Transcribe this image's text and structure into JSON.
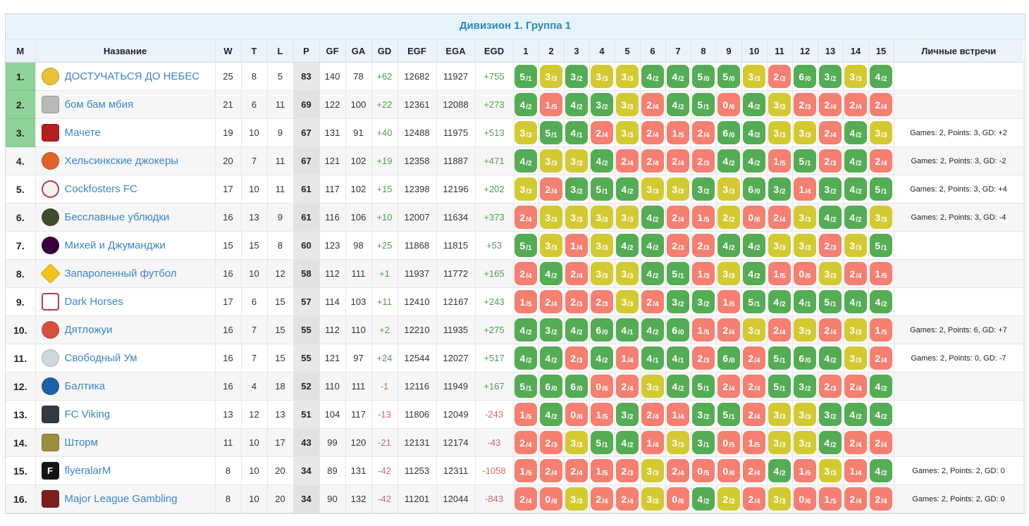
{
  "title": "Дивизион 1. Группа 1",
  "columns": {
    "place": "М",
    "name": "Название",
    "stats": [
      "W",
      "T",
      "L",
      "P",
      "GF",
      "GA",
      "GD",
      "EGF",
      "EGA",
      "EGD"
    ],
    "grid": [
      "1",
      "2",
      "3",
      "4",
      "5",
      "6",
      "7",
      "8",
      "9",
      "10",
      "11",
      "12",
      "13",
      "14",
      "15"
    ],
    "meetings": "Личные встречи"
  },
  "colors": {
    "accent": "#2789c6",
    "link": "#3c86c8",
    "win": "#54ac54",
    "draw": "#d3ca31",
    "loss": "#f57f71",
    "top_place": "#8ed29a",
    "positive": "#4e9e4e",
    "negative": "#cc6b66"
  },
  "legend": {
    "win_key": "w",
    "draw_key": "d",
    "loss_key": "l"
  },
  "teams": [
    {
      "place": "1.",
      "top3": true,
      "icon": {
        "bg": "#e6c23a",
        "shape": "circle",
        "label": ""
      },
      "name": "ДОСТУЧАТЬСЯ ДО НЕБЕС",
      "w": "25",
      "t": "8",
      "l": "5",
      "p": "83",
      "gf": "140",
      "ga": "78",
      "gd": "+62",
      "egf": "12682",
      "ega": "11927",
      "egd": "+755",
      "meetings": "",
      "results": [
        "5/1|w",
        "3/3|d",
        "3/2|w",
        "3/3|d",
        "3/3|d",
        "4/2|w",
        "4/2|w",
        "5/0|w",
        "5/0|w",
        "3/3|d",
        "2/3|l",
        "6/0|w",
        "3/2|w",
        "3/3|d",
        "4/2|w"
      ]
    },
    {
      "place": "2.",
      "top3": true,
      "icon": {
        "bg": "#b9b9b9",
        "shape": "square",
        "label": ""
      },
      "name": "бом бам мбия",
      "w": "21",
      "t": "6",
      "l": "11",
      "p": "69",
      "gf": "122",
      "ga": "100",
      "gd": "+22",
      "egf": "12361",
      "ega": "12088",
      "egd": "+273",
      "meetings": "",
      "results": [
        "4/2|w",
        "1/5|l",
        "4/2|w",
        "3/2|w",
        "3/3|d",
        "2/4|l",
        "4/2|w",
        "5/1|w",
        "0/6|l",
        "4/2|w",
        "3/3|d",
        "2/3|l",
        "2/4|l",
        "2/4|l",
        "2/4|l"
      ]
    },
    {
      "place": "3.",
      "top3": true,
      "icon": {
        "bg": "#b51f1f",
        "shape": "square",
        "label": ""
      },
      "name": "Мачете",
      "w": "19",
      "t": "10",
      "l": "9",
      "p": "67",
      "gf": "131",
      "ga": "91",
      "gd": "+40",
      "egf": "12488",
      "ega": "11975",
      "egd": "+513",
      "meetings": "Games: 2, Points: 3, GD: +2",
      "results": [
        "3/3|d",
        "5/1|w",
        "4/1|w",
        "2/4|l",
        "3/3|d",
        "2/4|l",
        "1/5|l",
        "2/4|l",
        "6/0|w",
        "4/2|w",
        "3/3|d",
        "3/3|d",
        "2/4|l",
        "4/2|w",
        "3/3|d"
      ]
    },
    {
      "place": "4.",
      "top3": false,
      "icon": {
        "bg": "#e2622b",
        "shape": "circle",
        "label": ""
      },
      "name": "Хельсинкские джокеры",
      "w": "20",
      "t": "7",
      "l": "11",
      "p": "67",
      "gf": "121",
      "ga": "102",
      "gd": "+19",
      "egf": "12358",
      "ega": "11887",
      "egd": "+471",
      "meetings": "Games: 2, Points: 3, GD: -2",
      "results": [
        "4/2|w",
        "3/3|d",
        "3/3|d",
        "4/2|w",
        "2/4|l",
        "2/4|l",
        "2/4|l",
        "2/3|l",
        "4/2|w",
        "4/2|w",
        "1/5|l",
        "5/1|w",
        "2/3|l",
        "4/2|w",
        "2/4|l"
      ]
    },
    {
      "place": "5.",
      "top3": false,
      "icon": {
        "bg": "#f3f3f3",
        "shape": "circle",
        "label": ""
      },
      "name": "Cockfosters FC",
      "w": "17",
      "t": "10",
      "l": "11",
      "p": "61",
      "gf": "117",
      "ga": "102",
      "gd": "+15",
      "egf": "12398",
      "ega": "12196",
      "egd": "+202",
      "meetings": "Games: 2, Points: 3, GD: +4",
      "results": [
        "3/3|d",
        "2/4|l",
        "3/2|w",
        "5/1|w",
        "4/2|w",
        "3/3|d",
        "3/3|d",
        "3/2|w",
        "3/3|d",
        "6/0|w",
        "3/2|w",
        "1/4|l",
        "3/2|w",
        "4/2|w",
        "5/1|w"
      ]
    },
    {
      "place": "6.",
      "top3": false,
      "icon": {
        "bg": "#3f4d2e",
        "shape": "circle",
        "label": ""
      },
      "name": "Бесславные ублюдки",
      "w": "16",
      "t": "13",
      "l": "9",
      "p": "61",
      "gf": "116",
      "ga": "106",
      "gd": "+10",
      "egf": "12007",
      "ega": "11634",
      "egd": "+373",
      "meetings": "Games: 2, Points: 3, GD: -4",
      "results": [
        "2/4|l",
        "3/3|d",
        "3/3|d",
        "3/3|d",
        "3/3|d",
        "4/2|w",
        "2/4|l",
        "1/5|l",
        "2/2|d",
        "0/6|l",
        "2/4|l",
        "3/3|d",
        "4/2|w",
        "4/2|w",
        "3/3|d"
      ]
    },
    {
      "place": "7.",
      "top3": false,
      "icon": {
        "bg": "#38003c",
        "shape": "circle",
        "label": ""
      },
      "name": "Михей и Джуманджи",
      "w": "15",
      "t": "15",
      "l": "8",
      "p": "60",
      "gf": "123",
      "ga": "98",
      "gd": "+25",
      "egf": "11868",
      "ega": "11815",
      "egd": "+53",
      "meetings": "",
      "results": [
        "5/1|w",
        "3/3|d",
        "1/4|l",
        "3/3|d",
        "4/2|w",
        "4/2|w",
        "2/3|l",
        "2/3|l",
        "4/2|w",
        "4/2|w",
        "3/3|d",
        "3/3|d",
        "2/3|l",
        "3/3|d",
        "5/1|w"
      ]
    },
    {
      "place": "8.",
      "top3": false,
      "icon": {
        "bg": "#f0c419",
        "shape": "diamond",
        "label": ""
      },
      "name": "Запароленный футбол",
      "w": "16",
      "t": "10",
      "l": "12",
      "p": "58",
      "gf": "112",
      "ga": "111",
      "gd": "+1",
      "egf": "11937",
      "ega": "11772",
      "egd": "+165",
      "meetings": "",
      "results": [
        "2/4|l",
        "4/2|w",
        "2/4|l",
        "3/3|d",
        "3/3|d",
        "4/2|w",
        "5/1|w",
        "1/3|l",
        "3/3|d",
        "4/2|w",
        "1/5|l",
        "0/6|l",
        "3/3|d",
        "2/4|l",
        "1/5|l"
      ]
    },
    {
      "place": "9.",
      "top3": false,
      "icon": {
        "bg": "#ffffff",
        "shape": "square",
        "label": ""
      },
      "name": "Dark Horses",
      "w": "17",
      "t": "6",
      "l": "15",
      "p": "57",
      "gf": "114",
      "ga": "103",
      "gd": "+11",
      "egf": "12410",
      "ega": "12167",
      "egd": "+243",
      "meetings": "",
      "results": [
        "1/5|l",
        "2/4|l",
        "2/3|l",
        "2/3|l",
        "3/3|d",
        "2/4|l",
        "3/2|w",
        "3/2|w",
        "1/5|l",
        "5/1|w",
        "4/2|w",
        "4/1|w",
        "5/1|w",
        "4/1|w",
        "4/2|w"
      ]
    },
    {
      "place": "10.",
      "top3": false,
      "icon": {
        "bg": "#d94f3d",
        "shape": "circle",
        "label": ""
      },
      "name": "Дятложуи",
      "w": "16",
      "t": "7",
      "l": "15",
      "p": "55",
      "gf": "112",
      "ga": "110",
      "gd": "+2",
      "egf": "12210",
      "ega": "11935",
      "egd": "+275",
      "meetings": "Games: 2, Points: 6, GD: +7",
      "results": [
        "4/2|w",
        "3/2|w",
        "4/2|w",
        "6/0|w",
        "4/1|w",
        "4/2|w",
        "6/0|w",
        "1/5|l",
        "2/4|l",
        "3/3|d",
        "2/4|l",
        "3/3|d",
        "2/4|l",
        "3/3|d",
        "1/5|l"
      ]
    },
    {
      "place": "11.",
      "top3": false,
      "icon": {
        "bg": "#cfd8dc",
        "shape": "circle",
        "label": ""
      },
      "name": "Свободный Ум",
      "w": "16",
      "t": "7",
      "l": "15",
      "p": "55",
      "gf": "121",
      "ga": "97",
      "gd": "+24",
      "egf": "12544",
      "ega": "12027",
      "egd": "+517",
      "meetings": "Games: 2, Points: 0, GD: -7",
      "results": [
        "4/2|w",
        "4/2|w",
        "2/3|l",
        "4/2|w",
        "1/4|l",
        "4/1|w",
        "4/1|w",
        "2/3|l",
        "6/0|w",
        "2/4|l",
        "5/1|w",
        "6/0|w",
        "4/2|w",
        "3/3|d",
        "2/4|l"
      ]
    },
    {
      "place": "12.",
      "top3": false,
      "icon": {
        "bg": "#1f5fa8",
        "shape": "circle",
        "label": ""
      },
      "name": "Балтика",
      "w": "16",
      "t": "4",
      "l": "18",
      "p": "52",
      "gf": "110",
      "ga": "111",
      "gd": "-1",
      "egf": "12116",
      "ega": "11949",
      "egd": "+167",
      "meetings": "",
      "results": [
        "5/1|w",
        "6/0|w",
        "6/0|w",
        "0/6|l",
        "2/4|l",
        "3/3|d",
        "4/2|w",
        "5/1|w",
        "2/4|l",
        "2/4|l",
        "5/1|w",
        "3/2|w",
        "2/3|l",
        "2/4|l",
        "4/2|w"
      ]
    },
    {
      "place": "13.",
      "top3": false,
      "icon": {
        "bg": "#2f3a45",
        "shape": "square",
        "label": ""
      },
      "name": "FC Viking",
      "w": "13",
      "t": "12",
      "l": "13",
      "p": "51",
      "gf": "104",
      "ga": "117",
      "gd": "-13",
      "egf": "11806",
      "ega": "12049",
      "egd": "-243",
      "meetings": "",
      "results": [
        "1/5|l",
        "4/2|w",
        "0/6|l",
        "1/5|l",
        "3/2|w",
        "2/4|l",
        "1/4|l",
        "3/2|w",
        "5/1|w",
        "2/4|l",
        "3/3|d",
        "3/3|d",
        "3/2|w",
        "4/2|w",
        "4/2|w"
      ]
    },
    {
      "place": "14.",
      "top3": false,
      "icon": {
        "bg": "#9b8f3f",
        "shape": "square",
        "label": ""
      },
      "name": "Шторм",
      "w": "11",
      "t": "10",
      "l": "17",
      "p": "43",
      "gf": "99",
      "ga": "120",
      "gd": "-21",
      "egf": "12131",
      "ega": "12174",
      "egd": "-43",
      "meetings": "",
      "results": [
        "2/4|l",
        "2/3|l",
        "3/3|d",
        "5/1|w",
        "4/2|w",
        "1/4|l",
        "3/3|d",
        "3/1|w",
        "0/5|l",
        "1/5|l",
        "3/3|d",
        "3/3|d",
        "4/2|w",
        "2/4|l",
        "2/4|l"
      ]
    },
    {
      "place": "15.",
      "top3": false,
      "icon": {
        "bg": "#151515",
        "shape": "square",
        "label": "F"
      },
      "name": "flyeralarM",
      "w": "8",
      "t": "10",
      "l": "20",
      "p": "34",
      "gf": "89",
      "ga": "131",
      "gd": "-42",
      "egf": "11253",
      "ega": "12311",
      "egd": "-1058",
      "meetings": "Games: 2, Points: 2, GD: 0",
      "results": [
        "1/5|l",
        "2/4|l",
        "2/4|l",
        "1/5|l",
        "2/3|l",
        "3/3|d",
        "2/4|l",
        "0/5|l",
        "0/6|l",
        "2/4|l",
        "4/2|w",
        "1/5|l",
        "3/3|d",
        "1/4|l",
        "4/2|w"
      ]
    },
    {
      "place": "16.",
      "top3": false,
      "icon": {
        "bg": "#7e1f1f",
        "shape": "square",
        "label": ""
      },
      "name": "Major League Gambling",
      "w": "8",
      "t": "10",
      "l": "20",
      "p": "34",
      "gf": "90",
      "ga": "132",
      "gd": "-42",
      "egf": "11201",
      "ega": "12044",
      "egd": "-843",
      "meetings": "Games: 2, Points: 2, GD: 0",
      "results": [
        "2/4|l",
        "0/6|l",
        "3/3|d",
        "2/4|l",
        "2/4|l",
        "3/3|d",
        "0/6|l",
        "4/2|w",
        "2/2|d",
        "2/4|l",
        "3/3|d",
        "0/6|l",
        "1/5|l",
        "2/4|l",
        "2/4|l"
      ]
    }
  ]
}
